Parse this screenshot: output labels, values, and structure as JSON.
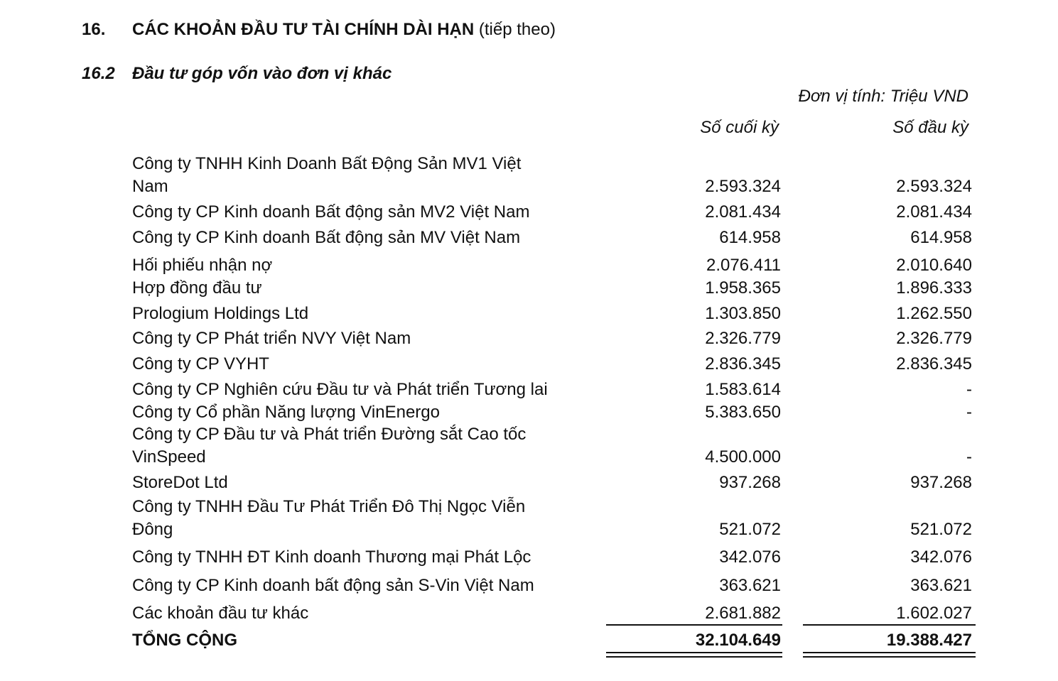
{
  "heading": {
    "number": "16.",
    "title": "CÁC KHOẢN ĐẦU TƯ TÀI CHÍNH DÀI HẠN",
    "suffix": "(tiếp theo)"
  },
  "subheading": {
    "number": "16.2",
    "title": "Đầu tư góp vốn vào đơn vị khác"
  },
  "unit_label": "Đơn vị tính: Triệu VND",
  "columns": [
    "Số cuối kỳ",
    "Số đầu kỳ"
  ],
  "rows": [
    {
      "name": "Công ty TNHH Kinh Doanh Bất Động Sản MV1 Việt\nNam",
      "end": "2.593.324",
      "begin": "2.593.324"
    },
    {
      "name": "Công ty CP Kinh doanh Bất động sản MV2 Việt Nam",
      "end": "2.081.434",
      "begin": "2.081.434"
    },
    {
      "name": "Công ty CP Kinh doanh Bất động sản MV Việt Nam",
      "end": "614.958",
      "begin": "614.958"
    },
    {
      "name": "Hối phiếu nhận nợ",
      "end": "2.076.411",
      "begin": "2.010.640"
    },
    {
      "name": "Hợp đồng đầu tư",
      "end": "1.958.365",
      "begin": "1.896.333"
    },
    {
      "name": "Prologium Holdings Ltd",
      "end": "1.303.850",
      "begin": "1.262.550"
    },
    {
      "name": "Công ty CP Phát triển NVY Việt Nam",
      "end": "2.326.779",
      "begin": "2.326.779"
    },
    {
      "name": "Công ty CP VYHT",
      "end": "2.836.345",
      "begin": "2.836.345"
    },
    {
      "name": "Công ty CP Nghiên cứu Đầu tư và Phát triển Tương lai",
      "end": "1.583.614",
      "begin": "-"
    },
    {
      "name": "Công ty Cổ phần Năng lượng VinEnergo",
      "end": "5.383.650",
      "begin": "-"
    },
    {
      "name": "Công ty CP Đầu tư và Phát triển Đường sắt Cao tốc\nVinSpeed",
      "end": "4.500.000",
      "begin": "-"
    },
    {
      "name": "StoreDot Ltd",
      "end": "937.268",
      "begin": "937.268"
    },
    {
      "name": "Công ty TNHH Đầu Tư Phát Triển Đô Thị Ngọc Viễn\nĐông",
      "end": "521.072",
      "begin": "521.072"
    },
    {
      "name": "Công ty TNHH ĐT Kinh doanh Thương mại Phát Lộc",
      "end": "342.076",
      "begin": "342.076"
    },
    {
      "name": "Công ty CP Kinh doanh bất động sản S-Vin Việt Nam",
      "end": "363.621",
      "begin": "363.621"
    },
    {
      "name": "Các khoản đầu tư khác",
      "end": "2.681.882",
      "begin": "1.602.027"
    }
  ],
  "total": {
    "name": "TỔNG CỘNG",
    "end": "32.104.649",
    "begin": "19.388.427"
  }
}
